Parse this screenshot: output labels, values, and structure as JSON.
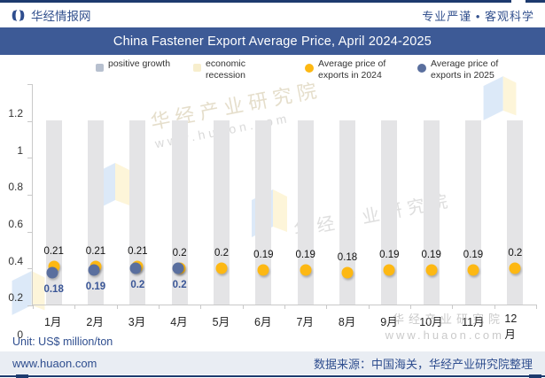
{
  "header": {
    "brand": "华经情报网",
    "tagline": "专业严谨 • 客观科学"
  },
  "title": "China Fastener Export Average Price, April 2024-2025",
  "legend": [
    {
      "label": "positive growth",
      "swatch": "square",
      "color": "#b7c0cf"
    },
    {
      "label": "economic recession",
      "swatch": "square",
      "color": "#f7eecd"
    },
    {
      "label": "Average price of exports in 2024",
      "swatch": "circle",
      "color": "#fdb813"
    },
    {
      "label": "Average price of exports in 2025",
      "swatch": "circle",
      "color": "#5a6f9e"
    }
  ],
  "chart_data": {
    "type": "bar",
    "title": "China Fastener Export Average Price, April 2024-2025",
    "categories": [
      "1月",
      "2月",
      "3月",
      "4月",
      "5月",
      "6月",
      "7月",
      "8月",
      "9月",
      "10月",
      "11月",
      "12月"
    ],
    "background_bars": {
      "name": "positive growth",
      "values": [
        1,
        1,
        1,
        1,
        1,
        1,
        1,
        1,
        1,
        1,
        1,
        1
      ],
      "color": "#e4e4e6"
    },
    "series": [
      {
        "name": "Average price of exports in 2024",
        "type": "scatter",
        "color": "#fdb813",
        "label_position": "above",
        "values": [
          0.21,
          0.21,
          0.21,
          0.2,
          0.2,
          0.19,
          0.19,
          0.18,
          0.19,
          0.19,
          0.19,
          0.2
        ]
      },
      {
        "name": "Average price of exports in 2025",
        "type": "scatter",
        "color": "#5a6f9e",
        "label_position": "below",
        "values": [
          0.18,
          0.19,
          0.2,
          0.2,
          null,
          null,
          null,
          null,
          null,
          null,
          null,
          null
        ]
      }
    ],
    "ylim": [
      0,
      1.2
    ],
    "yticks": [
      "0",
      "0.2",
      "0.4",
      "0.6",
      "0.8",
      "1",
      "1.2"
    ],
    "grid": false,
    "legend_position": "top",
    "ylabel": "",
    "xlabel": ""
  },
  "unit_note": "Unit: US$ million/ton",
  "footer": {
    "site": "www.huaon.com",
    "source": "数据来源：中国海关，华经产业研究院整理"
  },
  "watermark": {
    "text": "华经产业研究院",
    "url": "www.huaon.com"
  },
  "colors": {
    "navy": "#3d5a96",
    "rule": "#1d3a6e",
    "bar": "#e4e4e6",
    "dot_2024": "#fdb813",
    "dot_2025": "#5a6f9e",
    "footer_bg": "#e9edf3"
  }
}
